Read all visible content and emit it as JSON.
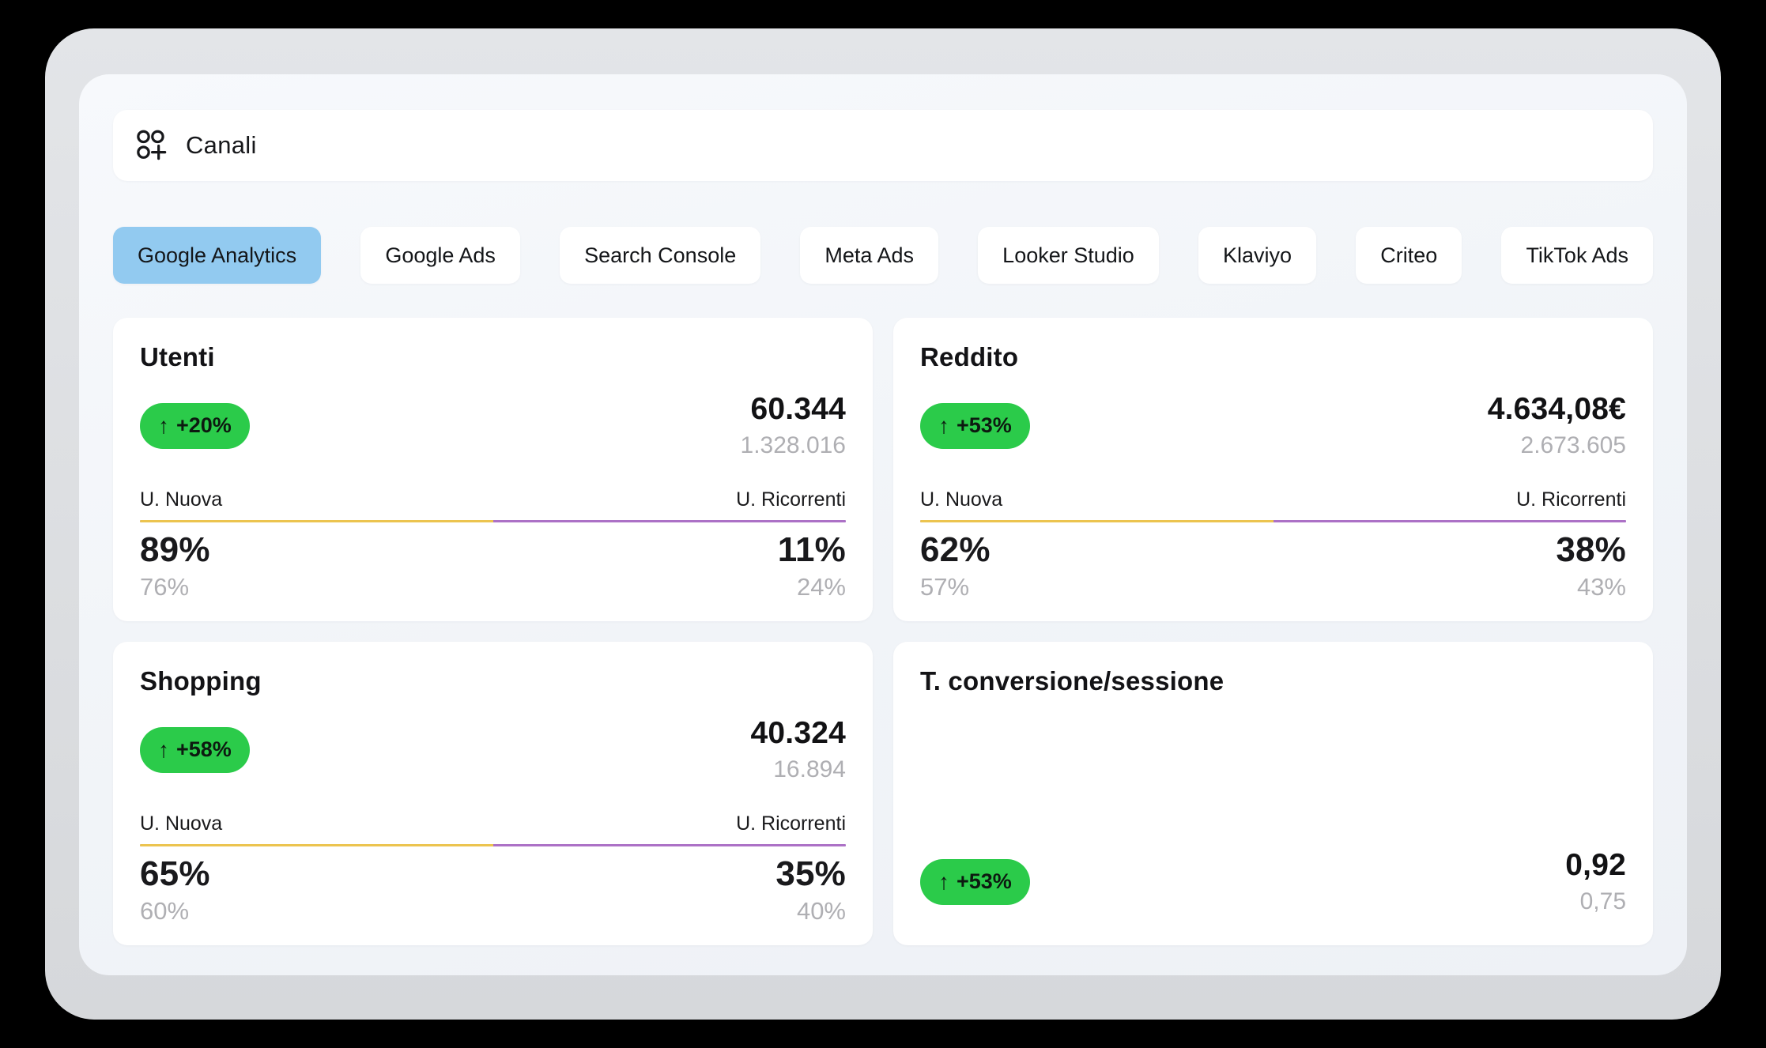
{
  "header": {
    "title": "Canali",
    "icon": "category-plus-icon"
  },
  "tabs": [
    {
      "label": "Google Analytics",
      "active": true
    },
    {
      "label": "Google Ads",
      "active": false
    },
    {
      "label": "Search Console",
      "active": false
    },
    {
      "label": "Meta Ads",
      "active": false
    },
    {
      "label": "Looker Studio",
      "active": false
    },
    {
      "label": "Klaviyo",
      "active": false
    },
    {
      "label": "Criteo",
      "active": false
    },
    {
      "label": "TikTok Ads",
      "active": false
    }
  ],
  "cards": [
    {
      "title": "Utenti",
      "badge": {
        "arrow": "↑",
        "label": "+20%"
      },
      "value": "60.344",
      "previous_value": "1.328.016",
      "split": {
        "left_label": "U. Nuova",
        "right_label": "U. Ricorrenti",
        "left_value": "89%",
        "right_value": "11%",
        "left_previous": "76%",
        "right_previous": "24%",
        "bar_left_width_pct": 50
      }
    },
    {
      "title": "Reddito",
      "badge": {
        "arrow": "↑",
        "label": "+53%"
      },
      "value": "4.634,08€",
      "previous_value": "2.673.605",
      "split": {
        "left_label": "U. Nuova",
        "right_label": "U. Ricorrenti",
        "left_value": "62%",
        "right_value": "38%",
        "left_previous": "57%",
        "right_previous": "43%",
        "bar_left_width_pct": 50
      }
    },
    {
      "title": "Shopping",
      "badge": {
        "arrow": "↑",
        "label": "+58%"
      },
      "value": "40.324",
      "previous_value": "16.894",
      "split": {
        "left_label": "U. Nuova",
        "right_label": "U. Ricorrenti",
        "left_value": "65%",
        "right_value": "35%",
        "left_previous": "60%",
        "right_previous": "40%",
        "bar_left_width_pct": 50
      }
    },
    {
      "title": "T. conversione/sessione",
      "badge": {
        "arrow": "↑",
        "label": "+53%"
      },
      "value": "0,92",
      "previous_value": "0,75"
    }
  ],
  "colors": {
    "badge_green": "#2BCB4A",
    "bar_yellow": "#ECC44F",
    "bar_purple": "#AC71C6",
    "active_tab_blue": "#92CAF0",
    "muted_text_gray": "#AFAFB3",
    "card_background": "#FFFFFF",
    "panel_background": "#F1F4F8"
  }
}
